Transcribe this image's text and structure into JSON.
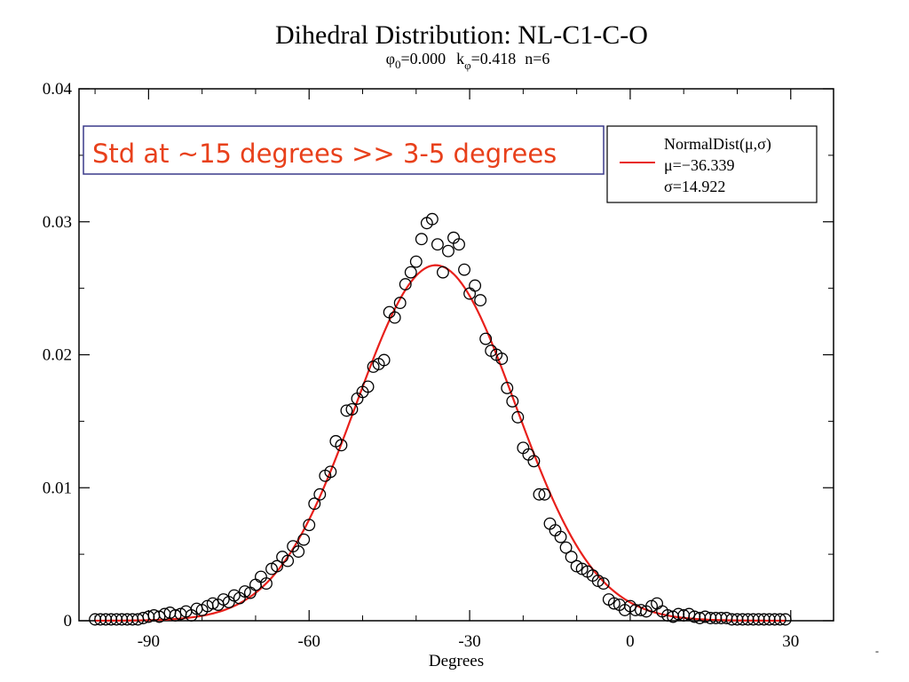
{
  "chart_data": {
    "type": "scatter",
    "title": "Dihedral Distribution: NL-C1-C-O",
    "subtitle": {
      "phi_sym": "φ",
      "phi_sub": "0",
      "phi_val": "=0.000",
      "k_sym": "k",
      "k_sub": "φ",
      "k_val": "=0.418",
      "n_text": "n=6"
    },
    "xlabel": "Degrees",
    "ylabel": "",
    "xlim": [
      -103,
      38
    ],
    "ylim": [
      0,
      0.04
    ],
    "x_ticks": [
      -90,
      -60,
      -30,
      0,
      30
    ],
    "x_tick_labels": [
      "-90",
      "-60",
      "-30",
      "0",
      "30"
    ],
    "y_ticks": [
      0,
      0.01,
      0.02,
      0.03,
      0.04
    ],
    "y_tick_labels": [
      "0",
      "0.01",
      "0.02",
      "0.03",
      "0.04"
    ],
    "grid": false,
    "legend": {
      "placement": "top-right",
      "line_color": "#e8201b",
      "title": "NormalDist(μ,σ)",
      "entries": [
        "μ=−36.339",
        "σ=14.922"
      ]
    },
    "annotation": {
      "text": "Std at ~15 degrees >> 3-5 degrees",
      "color": "#e8401b",
      "border_color": "#3a3a8a"
    },
    "series": [
      {
        "name": "",
        "kind": "markers",
        "marker": "open-circle",
        "color": "#000000",
        "x": [
          -100,
          -99,
          -98,
          -97,
          -96,
          -95,
          -94,
          -93,
          -92,
          -91,
          -90,
          -89,
          -88,
          -87,
          -86,
          -85,
          -84,
          -83,
          -82,
          -81,
          -80,
          -79,
          -78,
          -77,
          -76,
          -75,
          -74,
          -73,
          -72,
          -71,
          -70,
          -69,
          -68,
          -67,
          -66,
          -65,
          -64,
          -63,
          -62,
          -61,
          -60,
          -59,
          -58,
          -57,
          -56,
          -55,
          -54,
          -53,
          -52,
          -51,
          -50,
          -49,
          -48,
          -47,
          -46,
          -45,
          -44,
          -43,
          -42,
          -41,
          -40,
          -39,
          -38,
          -37,
          -36,
          -35,
          -34,
          -33,
          -32,
          -31,
          -30,
          -29,
          -28,
          -27,
          -26,
          -25,
          -24,
          -23,
          -22,
          -21,
          -20,
          -19,
          -18,
          -17,
          -16,
          -15,
          -14,
          -13,
          -12,
          -11,
          -10,
          -9,
          -8,
          -7,
          -6,
          -5,
          -4,
          -3,
          -2,
          -1,
          0,
          1,
          2,
          3,
          4,
          5,
          6,
          7,
          8,
          9,
          10,
          11,
          12,
          13,
          14,
          15,
          16,
          17,
          18,
          19,
          20,
          21,
          22,
          23,
          24,
          25,
          26,
          27,
          28,
          29
        ],
        "y": [
          0.0001,
          0.0001,
          0.0001,
          0.0001,
          0.0001,
          0.0001,
          0.0001,
          0.0001,
          0.0001,
          0.0002,
          0.0003,
          0.0004,
          0.0003,
          0.0005,
          0.0006,
          0.0004,
          0.0005,
          0.0007,
          0.0004,
          0.0009,
          0.0008,
          0.0011,
          0.0013,
          0.0012,
          0.0016,
          0.0014,
          0.0019,
          0.0017,
          0.0022,
          0.0021,
          0.0027,
          0.0033,
          0.0028,
          0.0039,
          0.0041,
          0.0048,
          0.0045,
          0.0056,
          0.0052,
          0.0061,
          0.0072,
          0.0088,
          0.0095,
          0.0109,
          0.0112,
          0.0135,
          0.0132,
          0.0158,
          0.0159,
          0.0167,
          0.0172,
          0.0176,
          0.0191,
          0.0193,
          0.0196,
          0.0232,
          0.0228,
          0.0239,
          0.0253,
          0.0262,
          0.027,
          0.0287,
          0.0299,
          0.0302,
          0.0283,
          0.0262,
          0.0278,
          0.0288,
          0.0283,
          0.0264,
          0.0246,
          0.0252,
          0.0241,
          0.0212,
          0.0203,
          0.02,
          0.0197,
          0.0175,
          0.0165,
          0.0153,
          0.013,
          0.0125,
          0.012,
          0.0095,
          0.0095,
          0.0073,
          0.0068,
          0.0063,
          0.0055,
          0.0048,
          0.0041,
          0.0039,
          0.0037,
          0.0034,
          0.003,
          0.0028,
          0.0016,
          0.0013,
          0.0012,
          0.0008,
          0.0011,
          0.0008,
          0.0008,
          0.0007,
          0.0011,
          0.0013,
          0.0007,
          0.0004,
          0.0003,
          0.0005,
          0.0004,
          0.0005,
          0.0003,
          0.0002,
          0.0003,
          0.0002,
          0.0002,
          0.0002,
          0.0002,
          0.0001,
          0.0001,
          0.0001,
          0.0001,
          0.0001,
          0.0001,
          0.0001,
          0.0001,
          0.0001,
          0.0001,
          0.0001
        ]
      },
      {
        "name": "NormalDist(μ,σ)",
        "kind": "curve",
        "color": "#e8201b",
        "mu": -36.339,
        "sigma": 14.922,
        "x_range": [
          -100,
          29
        ]
      }
    ]
  },
  "corner_mark": "-"
}
